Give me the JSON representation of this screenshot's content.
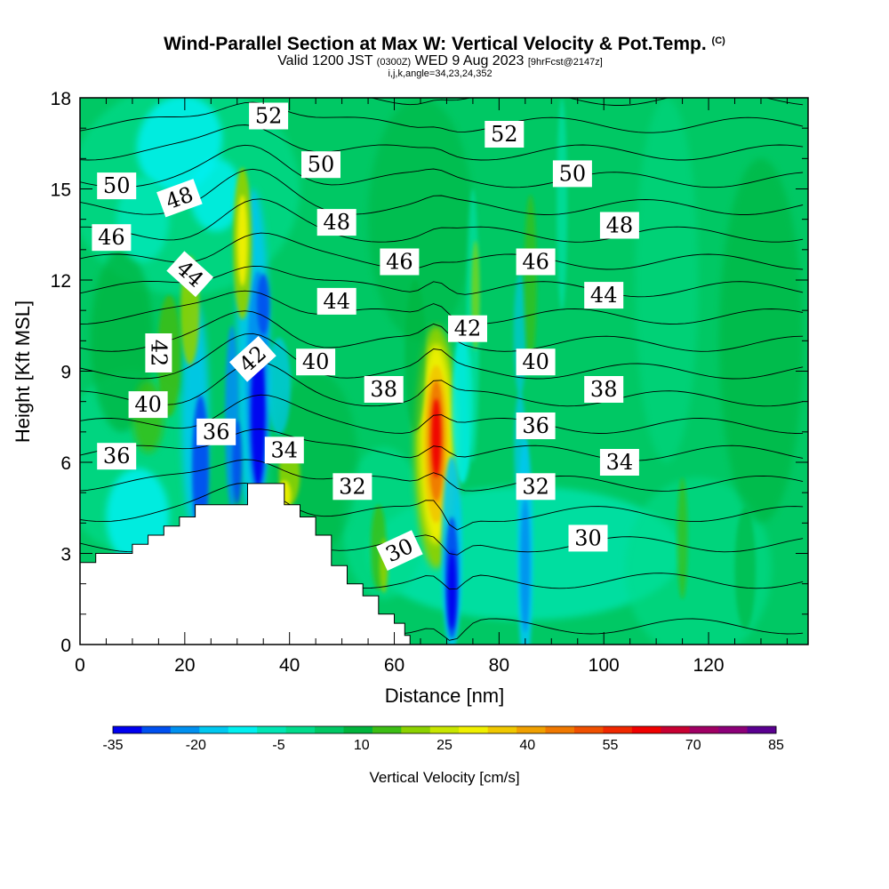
{
  "chart_data": {
    "type": "contour",
    "title": "Wind-Parallel Section at Max W: Vertical Velocity & Pot.Temp.",
    "title_mark": "(C)",
    "subtitle_prefix": "Valid 1200 JST",
    "subtitle_utc": "(0300Z)",
    "subtitle_date": "WED 9 Aug 2023",
    "subtitle_fcst": "[9hrFcst@2147z]",
    "subtitle2": "i,j,k,angle=34,23,24,352",
    "xlabel": "Distance [nm]",
    "ylabel": "Height [Kft MSL]",
    "xlim": [
      0,
      139
    ],
    "ylim": [
      0,
      18
    ],
    "x_ticks": [
      "0",
      "20",
      "40",
      "60",
      "80",
      "100",
      "120"
    ],
    "y_ticks": [
      "0",
      "3",
      "6",
      "9",
      "12",
      "15",
      "18"
    ],
    "colorbar": {
      "label": "Vertical Velocity [cm/s]",
      "tick_labels": [
        "-35",
        "-20",
        "-5",
        "10",
        "25",
        "40",
        "55",
        "70",
        "85"
      ],
      "colors": [
        "#0000f0",
        "#0050f0",
        "#0090f0",
        "#00c8f0",
        "#00f0f0",
        "#00e6b4",
        "#00dc8c",
        "#00c864",
        "#00b43c",
        "#3cbe14",
        "#8cd200",
        "#c8e600",
        "#f0f000",
        "#f0c800",
        "#f0a000",
        "#f07800",
        "#f05000",
        "#f02800",
        "#f00000",
        "#c80032",
        "#a00064",
        "#8c0078",
        "#5a0090"
      ]
    },
    "theta_contour_labels": [
      {
        "text": "52",
        "x": 36,
        "y": 17.4
      },
      {
        "text": "52",
        "x": 81,
        "y": 16.8
      },
      {
        "text": "50",
        "x": 7,
        "y": 15.1
      },
      {
        "text": "50",
        "x": 46,
        "y": 15.8
      },
      {
        "text": "50",
        "x": 94,
        "y": 15.5
      },
      {
        "text": "48",
        "x": 19,
        "y": 14.7
      },
      {
        "text": "48",
        "x": 49,
        "y": 13.9
      },
      {
        "text": "48",
        "x": 103,
        "y": 13.8
      },
      {
        "text": "46",
        "x": 6,
        "y": 13.4
      },
      {
        "text": "46",
        "x": 61,
        "y": 12.6
      },
      {
        "text": "46",
        "x": 87,
        "y": 12.6
      },
      {
        "text": "44",
        "x": 21,
        "y": 12.2
      },
      {
        "text": "44",
        "x": 49,
        "y": 11.3
      },
      {
        "text": "44",
        "x": 100,
        "y": 11.5
      },
      {
        "text": "42",
        "x": 15,
        "y": 9.6
      },
      {
        "text": "42",
        "x": 33,
        "y": 9.4
      },
      {
        "text": "42",
        "x": 74,
        "y": 10.4
      },
      {
        "text": "40",
        "x": 13,
        "y": 7.9
      },
      {
        "text": "40",
        "x": 45,
        "y": 9.3
      },
      {
        "text": "40",
        "x": 87,
        "y": 9.3
      },
      {
        "text": "38",
        "x": 58,
        "y": 8.4
      },
      {
        "text": "38",
        "x": 100,
        "y": 8.4
      },
      {
        "text": "36",
        "x": 26,
        "y": 7.0
      },
      {
        "text": "36",
        "x": 7,
        "y": 6.2
      },
      {
        "text": "36",
        "x": 87,
        "y": 7.2
      },
      {
        "text": "34",
        "x": 39,
        "y": 6.4
      },
      {
        "text": "34",
        "x": 103,
        "y": 6.0
      },
      {
        "text": "32",
        "x": 52,
        "y": 5.2
      },
      {
        "text": "32",
        "x": 87,
        "y": 5.2
      },
      {
        "text": "30",
        "x": 61,
        "y": 3.1
      },
      {
        "text": "30",
        "x": 97,
        "y": 3.5
      }
    ],
    "vertical_velocity_features": [
      {
        "feature": "max updraft core",
        "x": 68,
        "y": 6.5,
        "value": 70
      },
      {
        "feature": "downdraft core",
        "x": 71,
        "y": 2.0,
        "value": -35
      },
      {
        "feature": "downdraft core",
        "x": 34,
        "y": 7.5,
        "value": -35
      },
      {
        "feature": "downdraft core",
        "x": 23,
        "y": 5.5,
        "value": -30
      },
      {
        "feature": "downdraft",
        "x": 85,
        "y": 2.5,
        "value": -20
      },
      {
        "feature": "updraft",
        "x": 31,
        "y": 13.0,
        "value": 30
      }
    ],
    "terrain": [
      [
        0,
        2.7
      ],
      [
        3,
        2.7
      ],
      [
        3,
        3.0
      ],
      [
        10,
        3.0
      ],
      [
        10,
        3.3
      ],
      [
        13,
        3.3
      ],
      [
        13,
        3.6
      ],
      [
        16,
        3.6
      ],
      [
        16,
        3.9
      ],
      [
        19,
        3.9
      ],
      [
        19,
        4.2
      ],
      [
        22,
        4.2
      ],
      [
        22,
        4.6
      ],
      [
        32,
        4.6
      ],
      [
        32,
        5.3
      ],
      [
        39,
        5.3
      ],
      [
        39,
        4.6
      ],
      [
        42,
        4.6
      ],
      [
        42,
        4.2
      ],
      [
        45,
        4.2
      ],
      [
        45,
        3.6
      ],
      [
        48,
        3.6
      ],
      [
        48,
        2.6
      ],
      [
        51,
        2.6
      ],
      [
        51,
        2.0
      ],
      [
        54,
        2.0
      ],
      [
        54,
        1.6
      ],
      [
        57,
        1.6
      ],
      [
        57,
        1.0
      ],
      [
        60,
        1.0
      ],
      [
        60,
        0.7
      ],
      [
        62,
        0.7
      ],
      [
        62,
        0.3
      ],
      [
        63,
        0.3
      ],
      [
        63,
        0
      ]
    ]
  }
}
